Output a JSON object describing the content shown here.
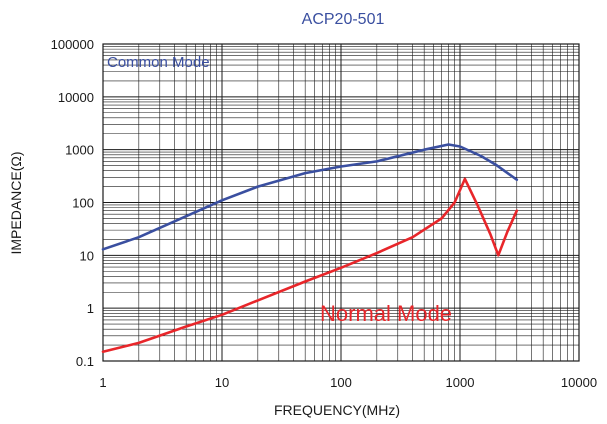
{
  "chart_data": {
    "type": "line",
    "title": "ACP20-501",
    "xlabel": "FREQUENCY(MHz)",
    "ylabel": "IMPEDANCE(Ω)",
    "xscale": "log",
    "yscale": "log",
    "xlim": [
      1,
      10000
    ],
    "ylim": [
      0.1,
      100000
    ],
    "xticks": [
      "1",
      "10",
      "100",
      "1000",
      "10000"
    ],
    "yticks": [
      "0.1",
      "1",
      "10",
      "100",
      "1000",
      "10000",
      "100000"
    ],
    "grid": true,
    "series": [
      {
        "name": "Common Mode",
        "color": "#3a4fa0",
        "x": [
          1,
          2,
          5,
          10,
          20,
          50,
          100,
          200,
          500,
          800,
          1000,
          1500,
          2000,
          3000
        ],
        "y": [
          13,
          22,
          55,
          110,
          200,
          360,
          480,
          600,
          1000,
          1250,
          1150,
          760,
          520,
          270
        ]
      },
      {
        "name": "Normal Mode",
        "color": "#e8262a",
        "x": [
          1,
          2,
          5,
          10,
          20,
          50,
          100,
          200,
          400,
          700,
          900,
          1100,
          1400,
          1800,
          2100,
          2500,
          3000
        ],
        "y": [
          0.15,
          0.22,
          0.45,
          0.75,
          1.4,
          3.2,
          5.8,
          11,
          22,
          50,
          100,
          280,
          90,
          25,
          10,
          28,
          70
        ]
      }
    ]
  }
}
